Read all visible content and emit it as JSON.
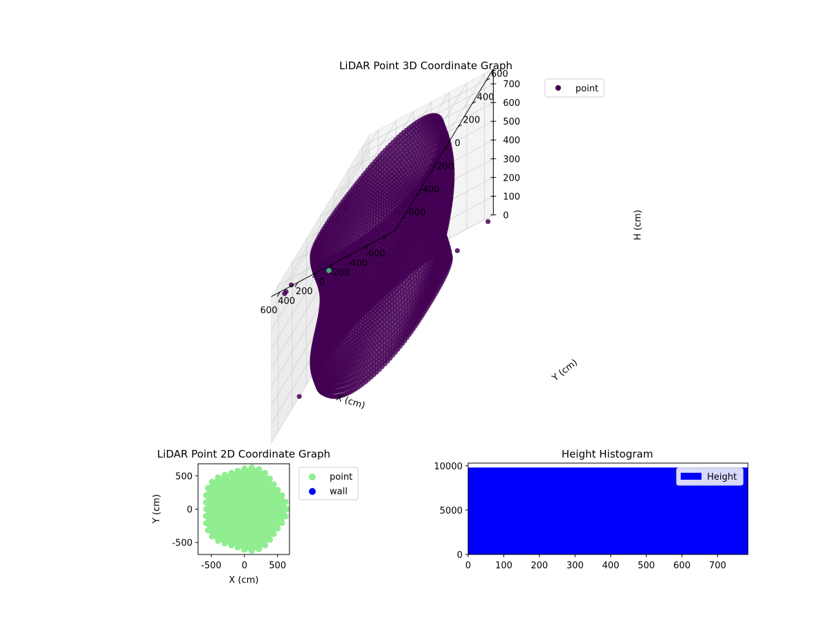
{
  "chart_data": [
    {
      "type": "scatter",
      "projection": "3d",
      "title": "LiDAR Point 3D Coordinate Graph",
      "xlabel": "X (cm)",
      "ylabel": "Y (cm)",
      "zlabel": "H (cm)",
      "xlim": [
        -700,
        700
      ],
      "ylim": [
        -700,
        700
      ],
      "zlim": [
        0,
        780
      ],
      "z_inverted": true,
      "x_ticks": [
        "-600",
        "-400",
        "-200",
        "0",
        "200",
        "400",
        "600"
      ],
      "y_ticks": [
        "-600",
        "-400",
        "-200",
        "0",
        "200",
        "400",
        "600"
      ],
      "z_ticks": [
        "0",
        "100",
        "200",
        "300",
        "400",
        "500",
        "600",
        "700"
      ],
      "legend": {
        "entries": [
          "point"
        ],
        "placement": "top-right"
      },
      "grid": true,
      "colormap": "viridis",
      "series": [
        {
          "name": "point",
          "color": "#440154",
          "description_shape": "dense ring of points, radius ~620 cm, heights 0-760 cm",
          "ring": {
            "radius": 620,
            "h_min": 0,
            "h_max": 760
          },
          "outliers": [
            {
              "x": -680,
              "y": 650,
              "h": 0
            },
            {
              "x": -690,
              "y": 200,
              "h": 120
            },
            {
              "x": 520,
              "y": -640,
              "h": 760
            },
            {
              "x": 540,
              "y": -690,
              "h": 760
            },
            {
              "x": 545,
              "y": -705,
              "h": 760
            },
            {
              "x": 690,
              "y": 350,
              "h": 600
            },
            {
              "x": 700,
              "y": -300,
              "h": 0
            }
          ],
          "highlight_point": {
            "x": 0,
            "y": -760,
            "h": 780,
            "color": "#35b779"
          }
        }
      ]
    },
    {
      "type": "scatter",
      "title": "LiDAR Point 2D Coordinate Graph",
      "xlabel": "X (cm)",
      "ylabel": "Y (cm)",
      "xlim": [
        -700,
        680
      ],
      "ylim": [
        -680,
        680
      ],
      "x_ticks": [
        "-500",
        "0",
        "500"
      ],
      "y_ticks": [
        "-500",
        "0",
        "500"
      ],
      "legend": {
        "entries": [
          "point",
          "wall"
        ],
        "placement": "outside-right"
      },
      "grid": false,
      "series": [
        {
          "name": "point",
          "color": "#90ee90",
          "fill_radius": 640
        },
        {
          "name": "wall",
          "color": "#0000ff"
        }
      ]
    },
    {
      "type": "bar",
      "title": "Height Histogram",
      "xlim": [
        0,
        785
      ],
      "ylim": [
        0,
        10300
      ],
      "x_ticks": [
        "0",
        "100",
        "200",
        "300",
        "400",
        "500",
        "600",
        "700"
      ],
      "y_ticks": [
        "0",
        "5000",
        "10000"
      ],
      "legend": {
        "entries": [
          "Height"
        ],
        "placement": "top-right"
      },
      "grid": false,
      "series": [
        {
          "name": "Height",
          "color": "#0000ff",
          "bin_start": 0,
          "bin_end": 785,
          "count": 9800
        }
      ]
    }
  ]
}
